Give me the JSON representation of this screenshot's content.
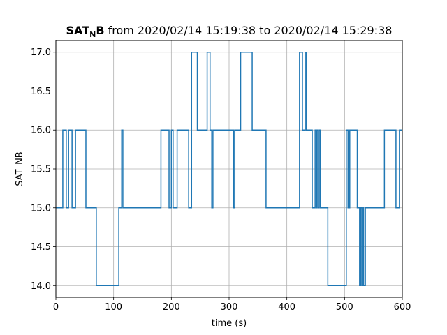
{
  "chart_data": {
    "type": "line",
    "title": {
      "main": "SAT",
      "sub": "N",
      "main_tail": "B",
      "rest": " from 2020/02/14 15:19:38 to 2020/02/14 15:29:38"
    },
    "xlabel": "time (s)",
    "ylabel": "SAT_NB",
    "xlim": [
      0,
      600
    ],
    "ylim": [
      13.85,
      17.15
    ],
    "xticks": [
      0,
      100,
      200,
      300,
      400,
      500,
      600
    ],
    "yticks": [
      14.0,
      14.5,
      15.0,
      15.5,
      16.0,
      16.5,
      17.0
    ],
    "xtick_labels": [
      "0",
      "100",
      "200",
      "300",
      "400",
      "500",
      "600"
    ],
    "ytick_labels": [
      "14.0",
      "14.5",
      "15.0",
      "15.5",
      "16.0",
      "16.5",
      "17.0"
    ],
    "grid": true,
    "line_style": "step-post",
    "color": "#1f77b4",
    "series": [
      {
        "x": [
          0,
          12,
          18,
          22,
          28,
          34,
          38,
          52,
          70,
          109,
          112,
          114,
          116,
          182,
          196,
          200,
          203,
          205,
          210,
          212,
          230,
          235,
          245,
          262,
          267,
          270,
          272,
          308,
          310,
          320,
          340,
          364,
          422,
          427,
          432,
          434,
          437,
          444,
          449,
          451,
          452,
          454,
          456,
          458,
          461,
          471,
          503,
          506,
          509,
          522,
          526,
          528,
          530,
          532,
          533,
          536,
          540,
          569,
          589,
          595,
          600
        ],
        "y": [
          15.0,
          16.0,
          15.0,
          16.0,
          15.0,
          16.0,
          16.0,
          15.0,
          14.0,
          15.0,
          15.0,
          16.0,
          15.0,
          16.0,
          15.0,
          16.0,
          15.0,
          15.0,
          16.0,
          16.0,
          15.0,
          17.0,
          16.0,
          17.0,
          16.0,
          15.0,
          16.0,
          15.0,
          16.0,
          17.0,
          16.0,
          15.0,
          17.0,
          16.0,
          17.0,
          16.0,
          16.0,
          15.0,
          16.0,
          15.0,
          16.0,
          15.0,
          16.0,
          15.0,
          15.0,
          14.0,
          16.0,
          15.0,
          16.0,
          15.0,
          14.0,
          15.0,
          14.0,
          15.0,
          14.0,
          15.0,
          15.0,
          16.0,
          15.0,
          16.0,
          16.0
        ]
      }
    ]
  }
}
